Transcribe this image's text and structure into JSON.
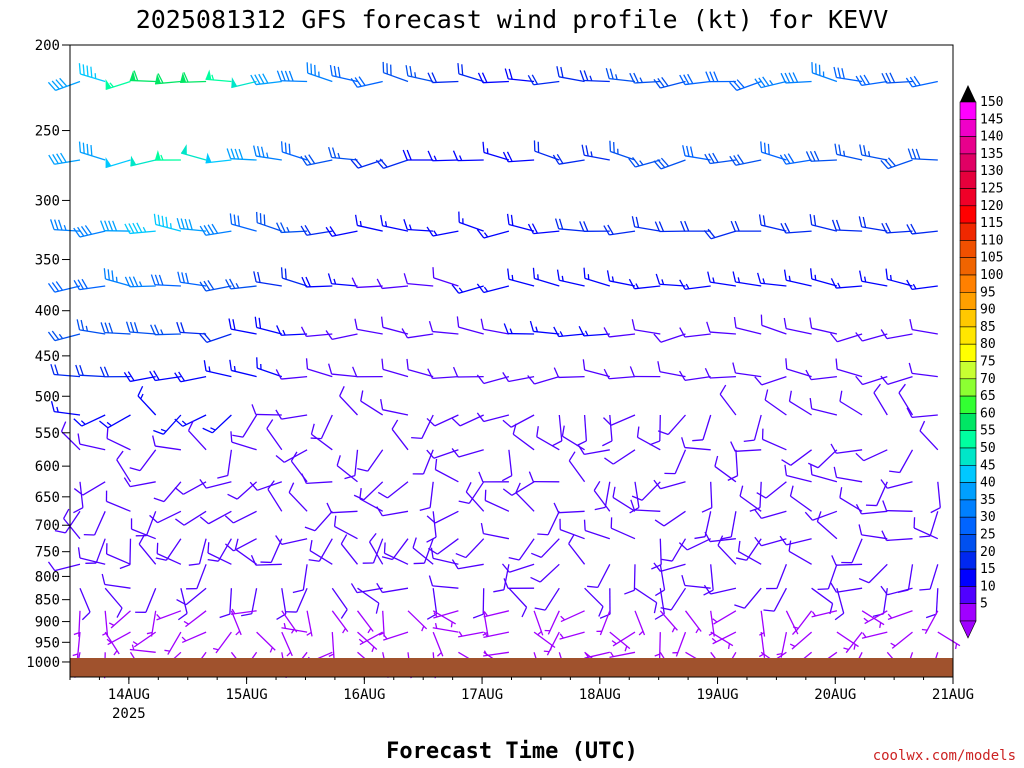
{
  "chart_data": {
    "type": "wind-barb profile",
    "title": "2025081312 GFS forecast wind profile (kt) for KEVV",
    "xlabel": "Forecast Time (UTC)",
    "ylabel": "",
    "credit": "coolwx.com/models",
    "y_ticks": [
      200,
      250,
      300,
      350,
      400,
      450,
      500,
      550,
      600,
      650,
      700,
      750,
      800,
      850,
      900,
      950,
      1000
    ],
    "ylim": [
      1000,
      200
    ],
    "x_ticks": [
      {
        "label": "14AUG",
        "sub": "2025",
        "hour": 12
      },
      {
        "label": "15AUG",
        "sub": "",
        "hour": 36
      },
      {
        "label": "16AUG",
        "sub": "",
        "hour": 60
      },
      {
        "label": "17AUG",
        "sub": "",
        "hour": 84
      },
      {
        "label": "18AUG",
        "sub": "",
        "hour": 108
      },
      {
        "label": "19AUG",
        "sub": "",
        "hour": 132
      },
      {
        "label": "20AUG",
        "sub": "",
        "hour": 156
      },
      {
        "label": "21AUG",
        "sub": "",
        "hour": 180
      }
    ],
    "xlim_hours": [
      0,
      180
    ],
    "surface_pressure_hpa": 1000,
    "colorbar": {
      "labels": [
        150,
        145,
        140,
        135,
        130,
        125,
        120,
        115,
        110,
        105,
        100,
        95,
        90,
        85,
        80,
        75,
        70,
        65,
        60,
        55,
        50,
        45,
        40,
        35,
        30,
        25,
        20,
        15,
        10,
        5
      ],
      "colors": [
        "#ff00ff",
        "#f000c8",
        "#e8008c",
        "#e00064",
        "#e6003c",
        "#f00028",
        "#ff0000",
        "#f02800",
        "#f05000",
        "#f06400",
        "#ff8000",
        "#ffa000",
        "#ffc800",
        "#ffe600",
        "#ffff00",
        "#c8ff32",
        "#8cff32",
        "#32ff32",
        "#00e664",
        "#00ffa0",
        "#00e6c8",
        "#00c8ff",
        "#00a0ff",
        "#0080ff",
        "#0064ff",
        "#0050f0",
        "#0028f0",
        "#0000ff",
        "#5000ff",
        "#a000ff"
      ]
    },
    "profile_levels": [
      {
        "p": 220,
        "spd": [
          40,
          45,
          55,
          60,
          62,
          60,
          55,
          50,
          42,
          38,
          35,
          32,
          30,
          28,
          25,
          22,
          20,
          18,
          18,
          20,
          22,
          24,
          25,
          25,
          28,
          30,
          30,
          32,
          35,
          38,
          35,
          32,
          30,
          28,
          30,
          32
        ]
      },
      {
        "p": 270,
        "spd": [
          40,
          42,
          48,
          52,
          55,
          52,
          48,
          42,
          35,
          30,
          28,
          25,
          22,
          20,
          18,
          15,
          15,
          15,
          18,
          20,
          22,
          24,
          25,
          25,
          28,
          30,
          28,
          28,
          30,
          30,
          28,
          25,
          25,
          28,
          28,
          30
        ]
      },
      {
        "p": 325,
        "spd": [
          35,
          38,
          42,
          45,
          45,
          42,
          38,
          32,
          28,
          25,
          22,
          18,
          15,
          15,
          15,
          15,
          15,
          15,
          18,
          18,
          20,
          20,
          22,
          22,
          22,
          22,
          22,
          22,
          22,
          22,
          22,
          22,
          20,
          20,
          20,
          20
        ]
      },
      {
        "p": 375,
        "spd": [
          30,
          32,
          35,
          35,
          32,
          30,
          28,
          25,
          22,
          20,
          18,
          15,
          12,
          12,
          12,
          12,
          15,
          15,
          15,
          15,
          15,
          15,
          15,
          15,
          15,
          15,
          15,
          15,
          15,
          15,
          15,
          15,
          15,
          15,
          15,
          15
        ]
      },
      {
        "p": 425,
        "spd": [
          25,
          25,
          28,
          28,
          25,
          22,
          20,
          18,
          18,
          15,
          12,
          10,
          10,
          10,
          10,
          10,
          12,
          12,
          15,
          15,
          15,
          15,
          12,
          12,
          10,
          10,
          10,
          10,
          10,
          10,
          10,
          10,
          10,
          10,
          10,
          10
        ]
      },
      {
        "p": 475,
        "spd": [
          20,
          20,
          20,
          18,
          18,
          18,
          15,
          15,
          15,
          12,
          10,
          10,
          10,
          10,
          10,
          10,
          12,
          12,
          12,
          12,
          12,
          12,
          10,
          10,
          10,
          10,
          10,
          10,
          10,
          10,
          10,
          10,
          10,
          10,
          10,
          10
        ]
      },
      {
        "p": 525,
        "spd": [
          15,
          15,
          15,
          15,
          15,
          15,
          15,
          12,
          12,
          10,
          10,
          10,
          10,
          10,
          10,
          10,
          10,
          12,
          12,
          12,
          12,
          10,
          10,
          10,
          10,
          10,
          10,
          10,
          10,
          10,
          10,
          10,
          10,
          10,
          10,
          10
        ]
      },
      {
        "p": 575,
        "spd": [
          12,
          12,
          12,
          12,
          12,
          12,
          12,
          10,
          10,
          10,
          10,
          10,
          10,
          10,
          10,
          10,
          10,
          10,
          10,
          10,
          10,
          10,
          10,
          10,
          10,
          10,
          10,
          10,
          10,
          10,
          10,
          10,
          10,
          10,
          10,
          10
        ]
      },
      {
        "p": 625,
        "spd": [
          10,
          10,
          10,
          10,
          10,
          10,
          10,
          10,
          10,
          10,
          10,
          10,
          10,
          10,
          10,
          10,
          10,
          10,
          10,
          10,
          10,
          10,
          10,
          10,
          10,
          10,
          10,
          10,
          10,
          10,
          10,
          10,
          10,
          10,
          10,
          10
        ]
      },
      {
        "p": 675,
        "spd": [
          10,
          10,
          10,
          10,
          10,
          10,
          10,
          10,
          10,
          10,
          10,
          10,
          10,
          10,
          10,
          10,
          10,
          10,
          10,
          10,
          10,
          10,
          10,
          10,
          10,
          10,
          10,
          10,
          10,
          10,
          10,
          10,
          10,
          10,
          10,
          10
        ]
      },
      {
        "p": 725,
        "spd": [
          10,
          10,
          10,
          10,
          10,
          10,
          10,
          10,
          10,
          10,
          10,
          10,
          10,
          10,
          10,
          10,
          10,
          10,
          10,
          10,
          10,
          10,
          10,
          10,
          10,
          10,
          10,
          10,
          10,
          10,
          10,
          10,
          10,
          10,
          10,
          10
        ]
      },
      {
        "p": 775,
        "spd": [
          10,
          10,
          10,
          10,
          10,
          10,
          10,
          10,
          10,
          10,
          10,
          10,
          10,
          10,
          10,
          10,
          10,
          10,
          10,
          10,
          10,
          10,
          10,
          10,
          10,
          10,
          10,
          10,
          10,
          10,
          10,
          10,
          10,
          10,
          10,
          10
        ]
      },
      {
        "p": 825,
        "spd": [
          10,
          10,
          10,
          10,
          10,
          10,
          10,
          10,
          10,
          10,
          10,
          10,
          10,
          10,
          10,
          10,
          10,
          10,
          10,
          10,
          10,
          10,
          10,
          10,
          10,
          10,
          10,
          10,
          10,
          10,
          10,
          10,
          10,
          10,
          10,
          10
        ]
      },
      {
        "p": 875,
        "spd": [
          5,
          5,
          5,
          5,
          5,
          5,
          5,
          5,
          5,
          5,
          5,
          5,
          5,
          5,
          5,
          5,
          5,
          5,
          5,
          5,
          5,
          5,
          5,
          5,
          5,
          5,
          5,
          5,
          5,
          5,
          5,
          5,
          5,
          5,
          5,
          5
        ]
      },
      {
        "p": 925,
        "spd": [
          5,
          5,
          5,
          5,
          5,
          5,
          5,
          5,
          5,
          5,
          5,
          5,
          5,
          5,
          5,
          5,
          5,
          5,
          5,
          5,
          5,
          5,
          5,
          5,
          5,
          5,
          5,
          5,
          5,
          5,
          5,
          5,
          5,
          5,
          5,
          5
        ]
      },
      {
        "p": 975,
        "spd": [
          5,
          5,
          5,
          5,
          5,
          5,
          5,
          5,
          5,
          5,
          5,
          5,
          5,
          5,
          5,
          5,
          5,
          5,
          5,
          5,
          5,
          5,
          5,
          5,
          5,
          5,
          5,
          5,
          5,
          5,
          5,
          5,
          5,
          5,
          5,
          5
        ]
      }
    ]
  }
}
